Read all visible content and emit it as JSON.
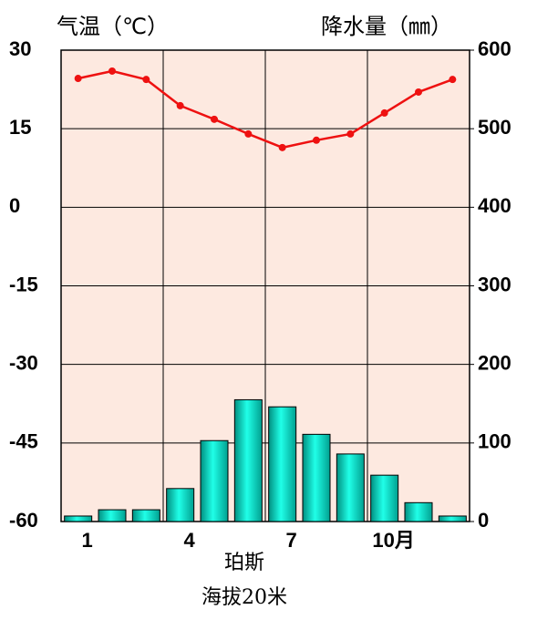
{
  "chart_data": {
    "type": "combo",
    "title": "珀斯",
    "subtitle": "海拔20米",
    "ylabel": "气温（℃）",
    "y2label": "降水量（㎜）",
    "categories": [
      "1",
      null,
      null,
      "4",
      null,
      null,
      "7",
      null,
      null,
      "10月",
      null,
      null
    ],
    "series": [
      {
        "name": "气温",
        "type": "line",
        "color": "#ee1111",
        "values": [
          24.6,
          26,
          24.4,
          19.4,
          16.8,
          14,
          11.4,
          12.8,
          14,
          18,
          22,
          24.4
        ]
      },
      {
        "name": "降水量",
        "type": "bar",
        "axis": "y2",
        "color": "#00e0c8",
        "values": [
          7,
          15,
          15,
          42,
          103,
          155,
          146,
          111,
          86,
          59,
          24,
          7
        ]
      }
    ],
    "ylim": [
      -60,
      30
    ],
    "yticks": [
      -60,
      -45,
      -30,
      -15,
      0,
      15,
      30
    ],
    "y2lim": [
      0,
      600
    ],
    "y2ticks": [
      0,
      100,
      200,
      300,
      400,
      500,
      600
    ],
    "grid": true
  }
}
